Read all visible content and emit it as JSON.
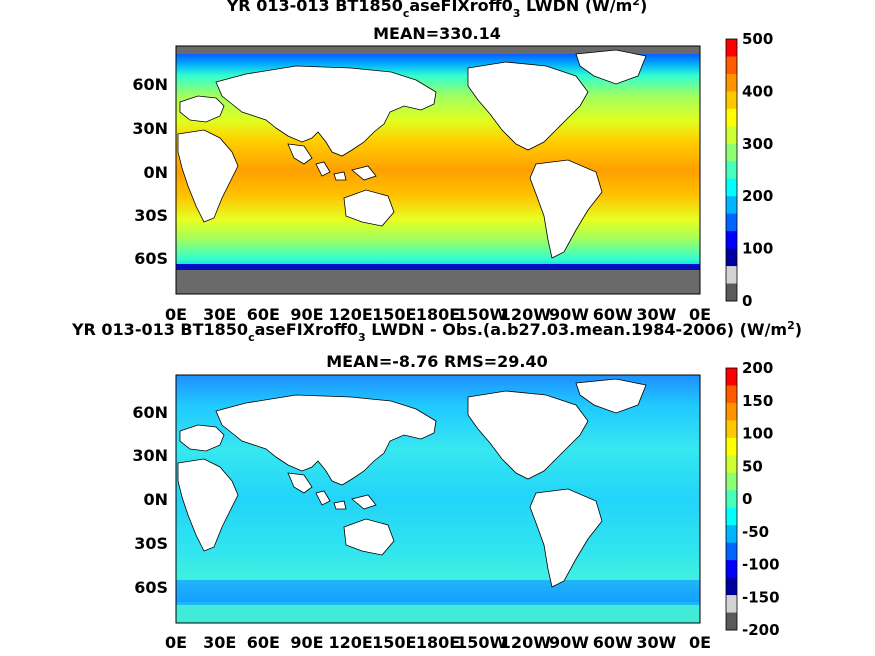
{
  "panels": [
    {
      "title_parts": [
        "YR 013-013 BT1850",
        "c",
        "aseFIXroff0",
        "3",
        " LWDN (W/m",
        "2",
        ")"
      ],
      "subtitle": "MEAN=330.14",
      "lat_ticks": [
        "60N",
        "30N",
        "0N",
        "30S",
        "60S"
      ],
      "lon_ticks": [
        "0E",
        "30E",
        "60E",
        "90E",
        "120E",
        "150E",
        "180E",
        "150W",
        "120W",
        "90W",
        "60W",
        "30W",
        "0E"
      ],
      "colorbar_ticks": [
        "500",
        "400",
        "300",
        "200",
        "100",
        "0"
      ],
      "colorbar_colors": [
        "#ff0000",
        "#ff5a00",
        "#ff9400",
        "#ffc800",
        "#ffff00",
        "#cdff32",
        "#8cff73",
        "#46ffb9",
        "#00ffff",
        "#00b4ff",
        "#0064ff",
        "#0000ff",
        "#0000a0",
        "#d3d3d3",
        "#5a5a5a"
      ]
    },
    {
      "title_parts": [
        "YR 013-013 BT1850",
        "c",
        "aseFIXroff0",
        "3",
        " LWDN - Obs.(a.b27.03.mean.1984-2006) (W/m",
        "2",
        ")"
      ],
      "subtitle": "MEAN=-8.76 RMS=29.40",
      "lat_ticks": [
        "60N",
        "30N",
        "0N",
        "30S",
        "60S"
      ],
      "lon_ticks": [
        "0E",
        "30E",
        "60E",
        "90E",
        "120E",
        "150E",
        "180E",
        "150W",
        "120W",
        "90W",
        "60W",
        "30W",
        "0E"
      ],
      "colorbar_ticks": [
        "200",
        "150",
        "100",
        "50",
        "0",
        "-50",
        "-100",
        "-150",
        "-200"
      ],
      "colorbar_colors": [
        "#ff0000",
        "#ff5a00",
        "#ff9400",
        "#ffc800",
        "#ffff00",
        "#cdff32",
        "#8cff73",
        "#46ffb9",
        "#00ffff",
        "#00b4ff",
        "#0064ff",
        "#0000ff",
        "#0000a0",
        "#d3d3d3",
        "#5a5a5a"
      ]
    }
  ]
}
